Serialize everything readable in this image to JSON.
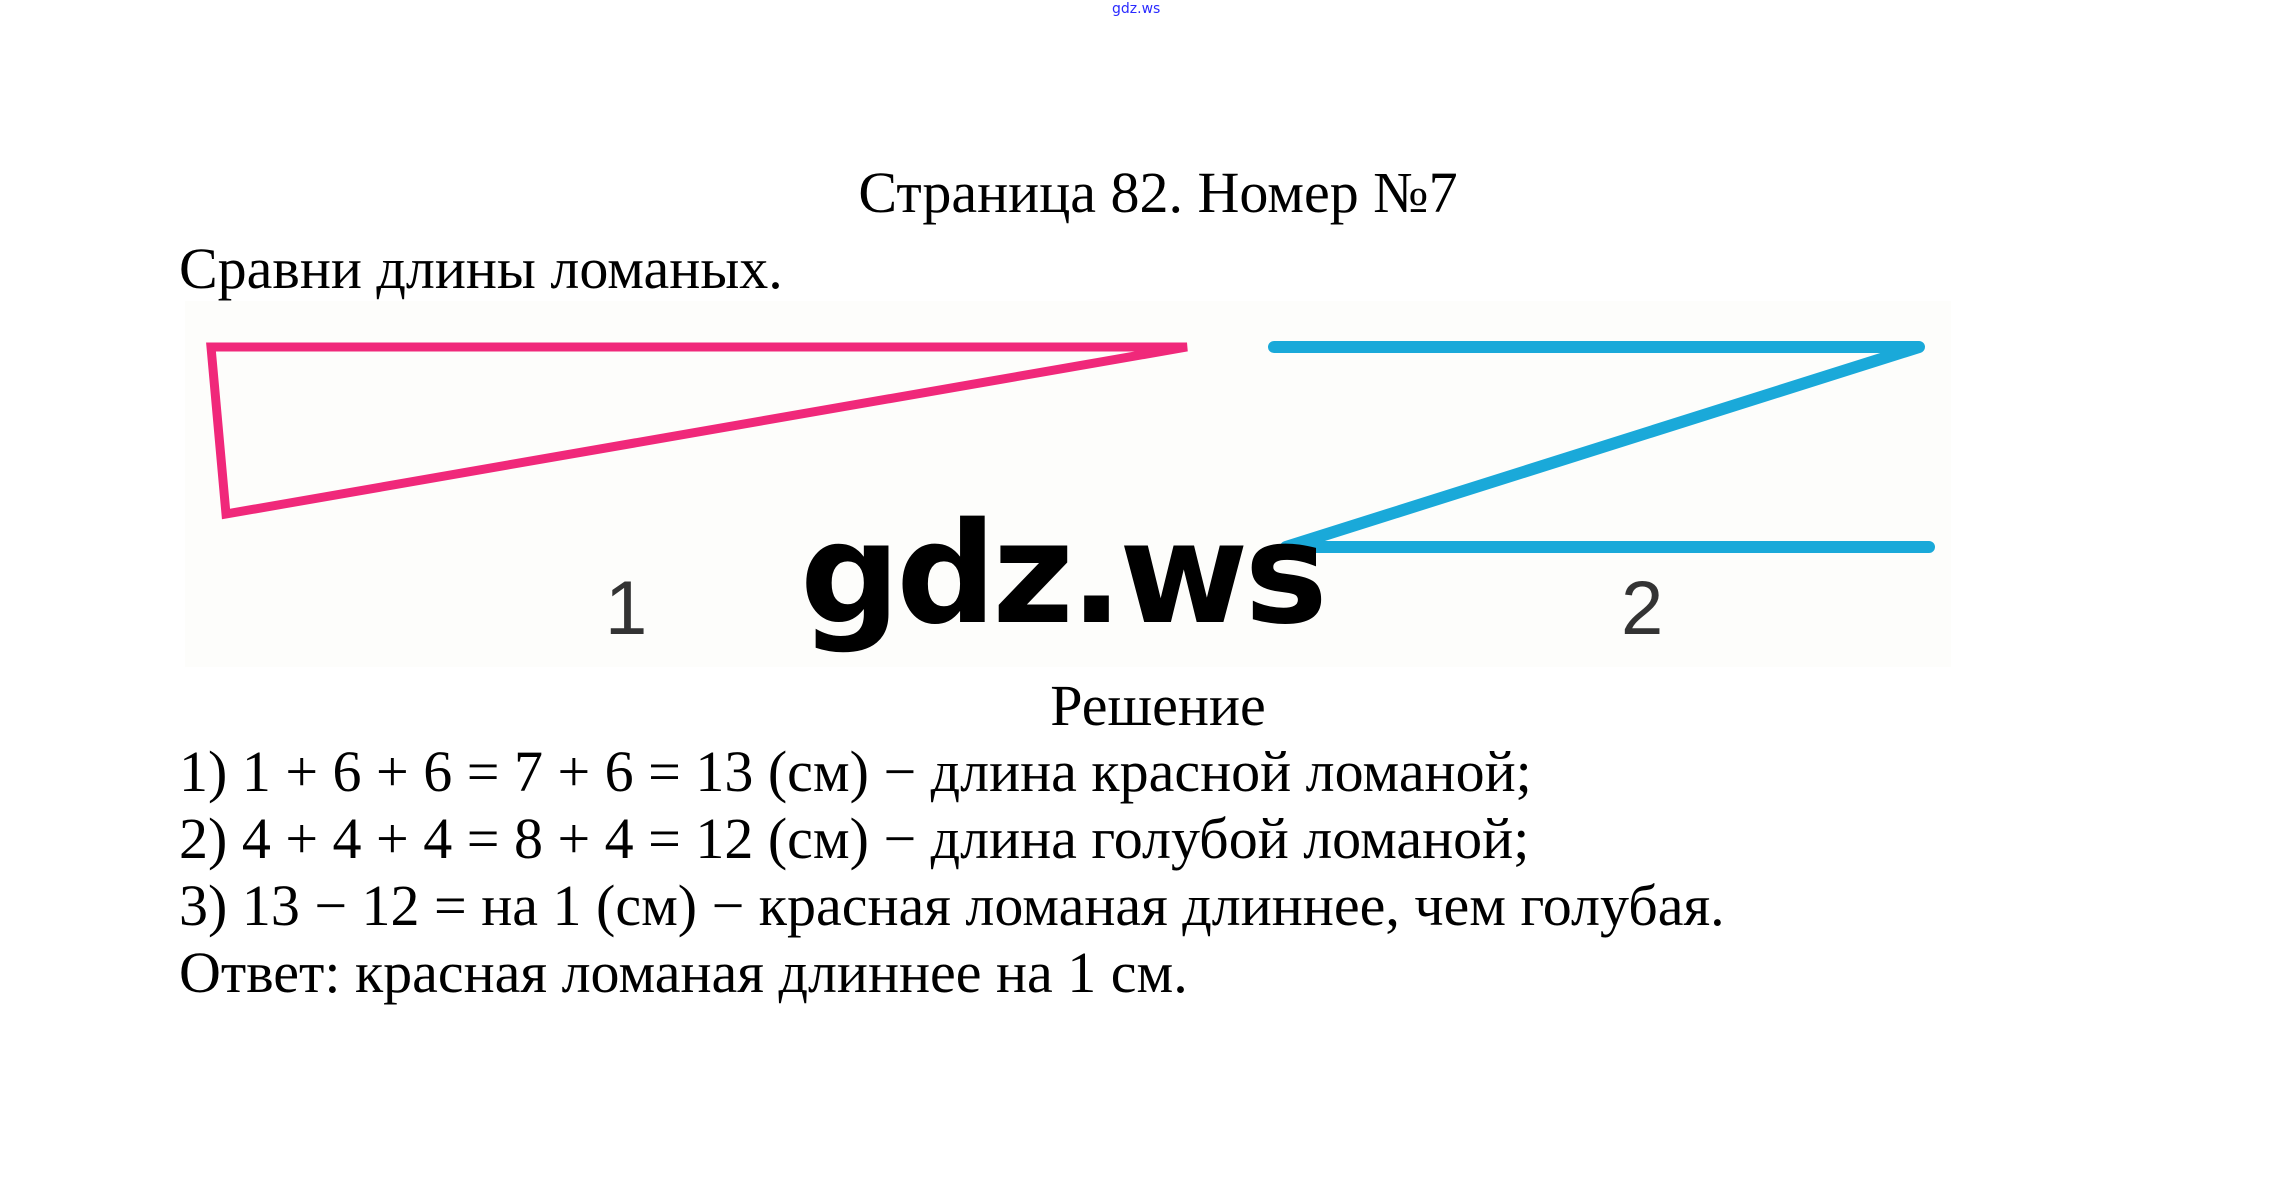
{
  "watermark_top": "gdz.ws",
  "title": "Страница 82. Номер №7",
  "task": "Сравни длины ломаных.",
  "figure": {
    "polyline_1_label": "1",
    "polyline_2_label": "2",
    "polyline_1_color": "#f0287a",
    "polyline_2_color": "#1aa9d9"
  },
  "watermark_big": "gdz.ws",
  "solution": {
    "heading": "Решение",
    "lines": [
      "1) 1 + 6 + 6 = 7 + 6 = 13 (см) − длина красной ломаной;",
      "2) 4 + 4 + 4 = 8 + 4 = 12 (см) − длина голубой ломаной;",
      "3) 13 − 12 = на 1 (см) − красная ломаная длиннее, чем голубая.",
      "Ответ: красная ломаная длиннее на 1 см."
    ]
  }
}
